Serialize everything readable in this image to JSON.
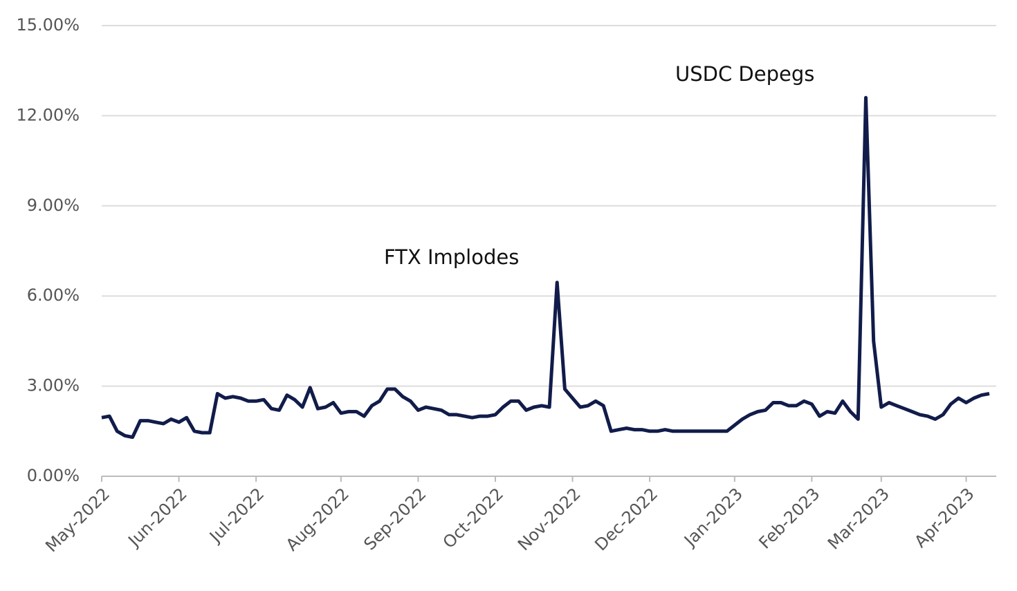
{
  "chart_data": {
    "type": "line",
    "annotations": [
      "FTX Implodes",
      "USDC Depegs"
    ],
    "categories": [
      "May-2022",
      null,
      null,
      null,
      null,
      null,
      null,
      null,
      null,
      null,
      "Jun-2022",
      null,
      null,
      null,
      null,
      null,
      null,
      null,
      null,
      null,
      "Jul-2022",
      null,
      null,
      null,
      null,
      null,
      null,
      null,
      null,
      null,
      null,
      "Aug-2022",
      null,
      null,
      null,
      null,
      null,
      null,
      null,
      null,
      null,
      "Sep-2022",
      null,
      null,
      null,
      null,
      null,
      null,
      null,
      null,
      null,
      "Oct-2022",
      null,
      null,
      null,
      null,
      null,
      null,
      null,
      null,
      null,
      "Nov-2022",
      null,
      null,
      null,
      null,
      null,
      null,
      null,
      null,
      null,
      "Dec-2022",
      null,
      null,
      null,
      null,
      null,
      null,
      null,
      null,
      null,
      null,
      "Jan-2023",
      null,
      null,
      null,
      null,
      null,
      null,
      null,
      null,
      null,
      "Feb-2023",
      null,
      null,
      null,
      null,
      null,
      null,
      null,
      null,
      "Mar-2023",
      null,
      null,
      null,
      null,
      null,
      null,
      null,
      null,
      null,
      null,
      "Apr-2023",
      null,
      null,
      null
    ],
    "series": [
      {
        "color": "#111c4a",
        "values": [
          1.95,
          2.0,
          1.5,
          1.35,
          1.3,
          1.85,
          1.85,
          1.8,
          1.75,
          1.9,
          1.8,
          1.95,
          1.5,
          1.45,
          1.45,
          2.75,
          2.6,
          2.65,
          2.6,
          2.5,
          2.5,
          2.55,
          2.25,
          2.2,
          2.7,
          2.55,
          2.3,
          2.95,
          2.25,
          2.3,
          2.45,
          2.1,
          2.15,
          2.15,
          2.0,
          2.35,
          2.5,
          2.9,
          2.9,
          2.65,
          2.5,
          2.2,
          2.3,
          2.25,
          2.2,
          2.05,
          2.05,
          2.0,
          1.95,
          2.0,
          2.0,
          2.05,
          2.3,
          2.5,
          2.5,
          2.2,
          2.3,
          2.35,
          2.3,
          6.45,
          2.9,
          2.6,
          2.3,
          2.35,
          2.5,
          2.35,
          1.5,
          1.55,
          1.6,
          1.55,
          1.55,
          1.5,
          1.5,
          1.55,
          1.5,
          1.5,
          1.5,
          1.5,
          1.5,
          1.5,
          1.5,
          1.5,
          1.7,
          1.9,
          2.05,
          2.15,
          2.2,
          2.45,
          2.45,
          2.35,
          2.35,
          2.5,
          2.4,
          2.0,
          2.15,
          2.1,
          2.5,
          2.15,
          1.9,
          12.6,
          4.5,
          2.3,
          2.45,
          2.35,
          2.25,
          2.15,
          2.05,
          2.0,
          1.9,
          2.05,
          2.4,
          2.6,
          2.45,
          2.6,
          2.7,
          2.75
        ]
      }
    ],
    "ylim": [
      0,
      15
    ],
    "yticks": [
      {
        "value": 0,
        "label": "0.00%"
      },
      {
        "value": 3,
        "label": "3.00%"
      },
      {
        "value": 6,
        "label": "6.00%"
      },
      {
        "value": 9,
        "label": "9.00%"
      },
      {
        "value": 12,
        "label": "12.00%"
      },
      {
        "value": 15,
        "label": "15.00%"
      }
    ],
    "grid": true
  }
}
